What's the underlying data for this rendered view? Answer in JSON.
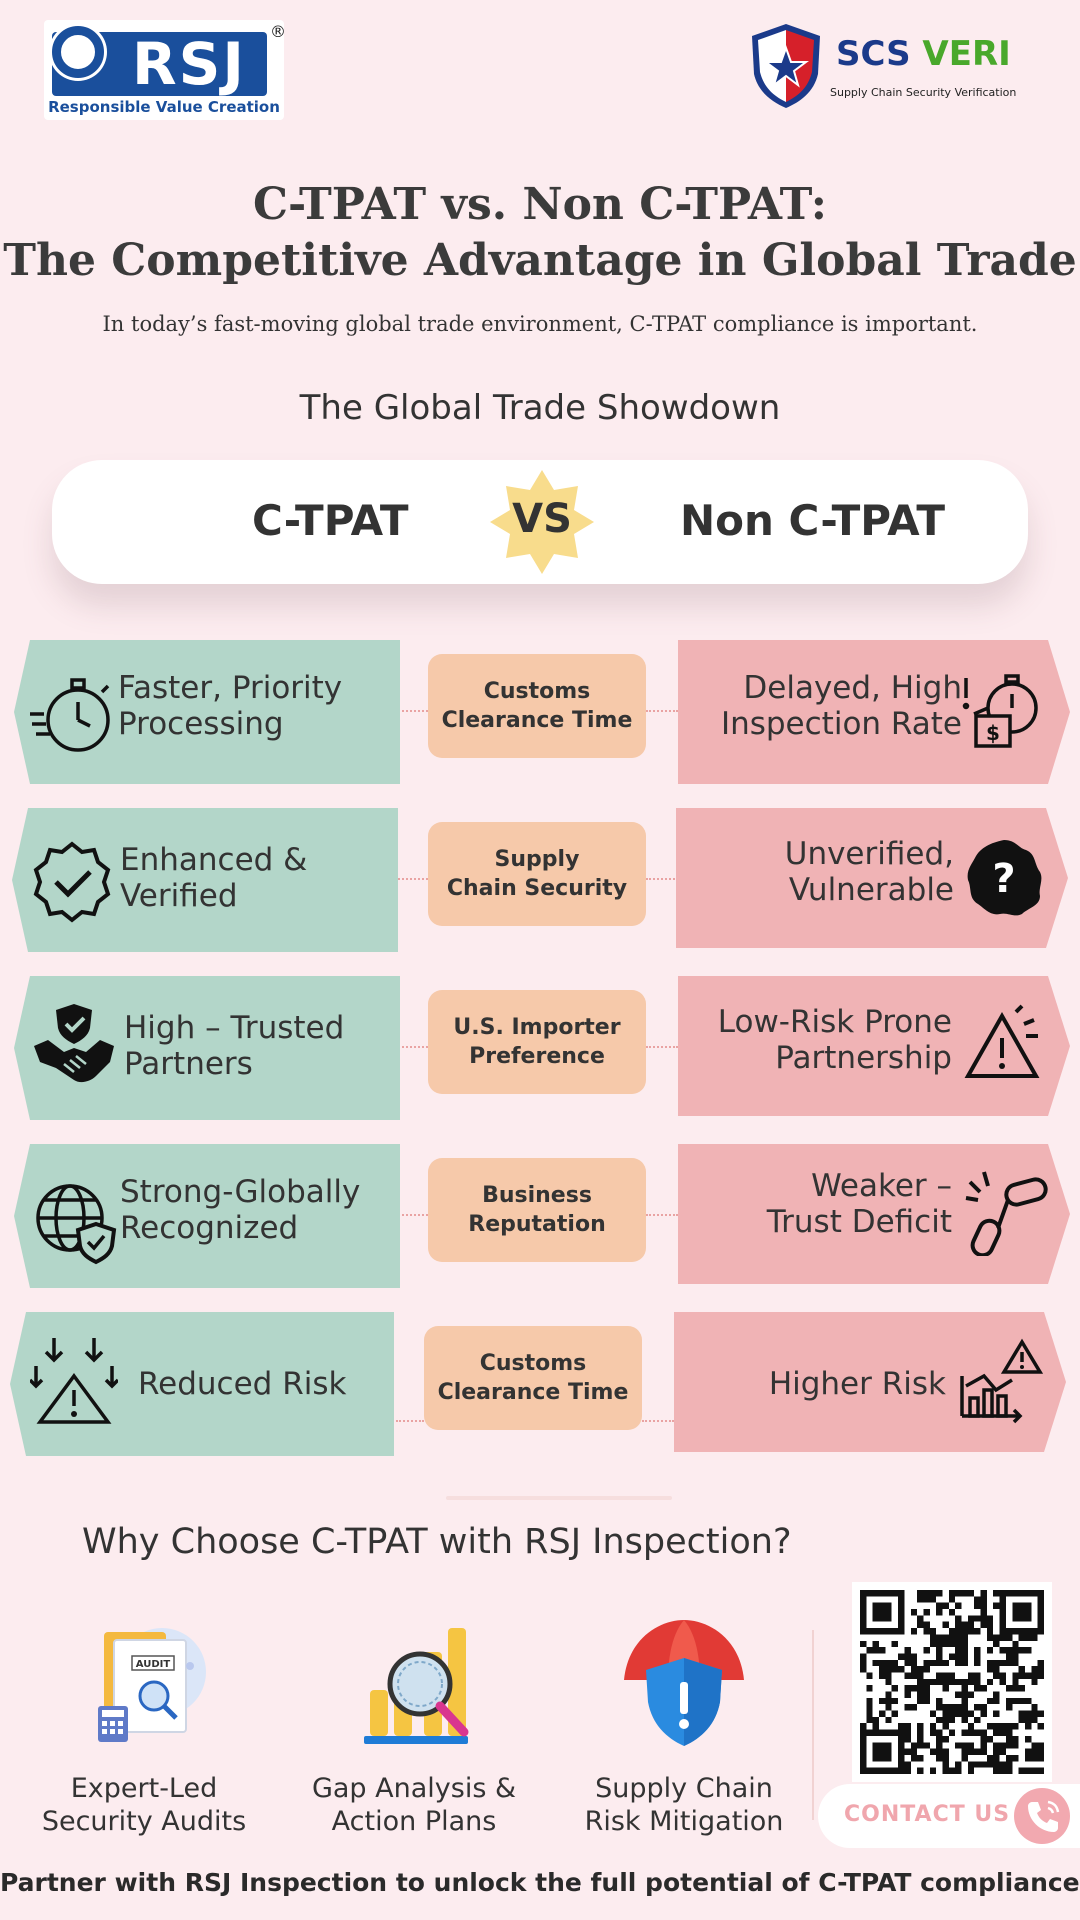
{
  "header": {
    "rsj_logo_text": "RSJ",
    "rsj_tagline": "Responsible Value Creation",
    "rsj_reg": "®",
    "scs_brand_a": "SCS",
    "scs_brand_b": "VERI",
    "scs_tagline": "Supply Chain Security Verification"
  },
  "title": {
    "line1": "C-TPAT vs. Non C-TPAT:",
    "line2": "The Competitive Advantage in Global Trade",
    "intro": "In today’s fast-moving global trade environment, C-TPAT compliance is important."
  },
  "showdown": {
    "heading": "The Global Trade Showdown",
    "left": "C-TPAT",
    "vs": "VS",
    "right": "Non C-TPAT"
  },
  "rows": [
    {
      "left": [
        "Faster, Priority",
        "Processing"
      ],
      "mid": [
        "Customs",
        "Clearance Time"
      ],
      "right": [
        "Delayed, High",
        "Inspection Rate"
      ],
      "left_icon": "stopwatch-icon",
      "right_icon": "alarm-clock-dollar-icon"
    },
    {
      "left": [
        "Enhanced &",
        "Verified"
      ],
      "mid": [
        "Supply",
        "Chain Security"
      ],
      "right": [
        "Unverified,",
        "Vulnerable"
      ],
      "left_icon": "verified-badge-icon",
      "right_icon": "question-badge-icon"
    },
    {
      "left": [
        "High – Trusted",
        "Partners"
      ],
      "mid": [
        "U.S. Importer",
        "Preference"
      ],
      "right": [
        "Low-Risk Prone",
        "Partnership"
      ],
      "left_icon": "handshake-shield-icon",
      "right_icon": "warning-triangle-icon"
    },
    {
      "left": [
        "Strong-Globally",
        "Recognized"
      ],
      "mid": [
        "Business",
        "Reputation"
      ],
      "right": [
        "Weaker –",
        "Trust Deficit"
      ],
      "left_icon": "globe-shield-icon",
      "right_icon": "broken-chain-icon"
    },
    {
      "left": [
        "Reduced Risk"
      ],
      "mid": [
        "Customs",
        "Clearance Time"
      ],
      "right": [
        "Higher Risk"
      ],
      "left_icon": "risk-down-arrows-icon",
      "right_icon": "rising-chart-warning-icon"
    }
  ],
  "why": {
    "heading": "Why Choose C-TPAT with RSJ Inspection?",
    "features": [
      {
        "label": [
          "Expert-Led",
          "Security Audits"
        ],
        "icon": "audit-clipboard-icon",
        "badge": "AUDIT"
      },
      {
        "label": [
          "Gap Analysis &",
          "Action Plans"
        ],
        "icon": "bar-chart-magnifier-icon"
      },
      {
        "label": [
          "Supply Chain",
          "Risk Mitigation"
        ],
        "icon": "umbrella-shield-icon"
      }
    ]
  },
  "contact": {
    "label": "CONTACT US"
  },
  "footer": "Partner with RSJ Inspection to unlock the full potential of C-TPAT compliance.",
  "colors": {
    "background": "#fcecef",
    "ctpat_card": "#b3d6c9",
    "non_ctpat_card": "#f0b3b5",
    "middle_card": "#f6c9aa",
    "vs_star": "#f8dc8c"
  }
}
